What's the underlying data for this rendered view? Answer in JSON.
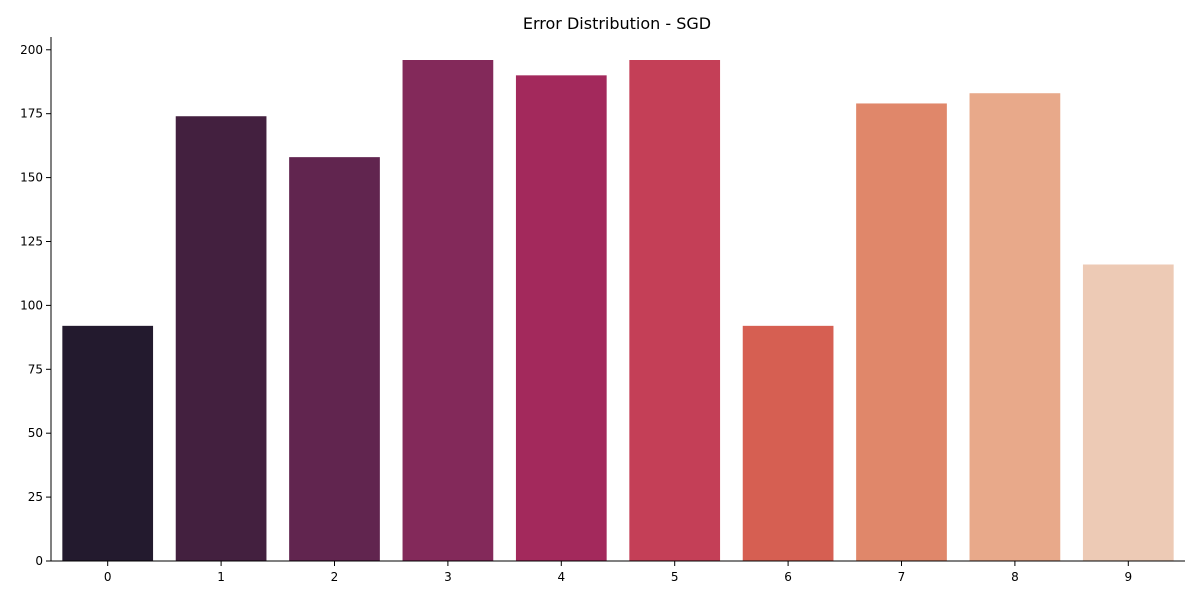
{
  "chart_data": {
    "type": "bar",
    "title": "Error Distribution - SGD",
    "xlabel": "",
    "ylabel": "",
    "categories": [
      "0",
      "1",
      "2",
      "3",
      "4",
      "5",
      "6",
      "7",
      "8",
      "9"
    ],
    "values": [
      92,
      174,
      158,
      196,
      190,
      196,
      92,
      179,
      183,
      116
    ],
    "ylim": [
      0,
      205
    ],
    "yticks": [
      0,
      25,
      50,
      75,
      100,
      125,
      150,
      175,
      200
    ],
    "grid": false,
    "legend": "none",
    "colors": [
      "#231a2e",
      "#43203f",
      "#61254f",
      "#83295a",
      "#a3295c",
      "#c43f57",
      "#d65f52",
      "#e0876a",
      "#e8a98a",
      "#edcab5"
    ]
  }
}
